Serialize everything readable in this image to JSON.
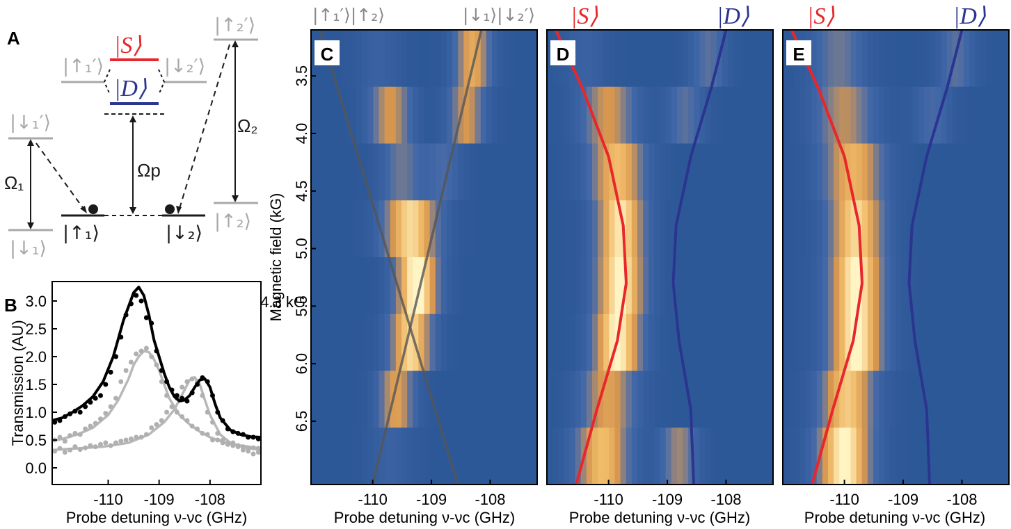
{
  "panels": {
    "A": {
      "label": "A",
      "levels": {
        "up1p": "|↑₁′⟩",
        "down2p_top": "|↓₂′⟩",
        "down1p": "|↓₁′⟩",
        "up2p": "|↑₂′⟩",
        "up1": "|↑₁⟩",
        "down2": "|↓₂⟩",
        "down1": "|↓₁⟩",
        "up2": "|↑₂⟩",
        "S": "|S⟩",
        "D": "|D⟩"
      },
      "couplings": {
        "omega1": "Ω₁",
        "omega2": "Ω₂",
        "omegap": "Ωp"
      },
      "colors": {
        "S": "#e8262b",
        "D": "#2b3590",
        "gray": "#a8a8a8",
        "black": "#1a1a1a"
      }
    }
  },
  "chart_data": [
    {
      "panel": "B",
      "type": "scatter",
      "annotation": "4.3 kG",
      "xlabel": "Probe detuning ν-νc (GHz)",
      "ylabel": "Transmission  (AU)",
      "xlim": [
        -111.1,
        -107.0
      ],
      "ylim": [
        -0.3,
        3.35
      ],
      "xticks": [
        -110,
        -109,
        -108
      ],
      "yticks": [
        0.0,
        0.5,
        1.0,
        1.5,
        2.0,
        2.5,
        3.0
      ],
      "series": [
        {
          "id": "total_fit",
          "color": "#000000",
          "x": [
            -111.1,
            -110.9,
            -110.7,
            -110.5,
            -110.3,
            -110.1,
            -109.9,
            -109.7,
            -109.5,
            -109.4,
            -109.3,
            -109.2,
            -109.1,
            -108.9,
            -108.8,
            -108.7,
            -108.6,
            -108.5,
            -108.4,
            -108.3,
            -108.2,
            -108.1,
            -108.0,
            -107.9,
            -107.8,
            -107.6,
            -107.4,
            -107.2,
            -107.0
          ],
          "y": [
            0.85,
            0.9,
            1.0,
            1.12,
            1.28,
            1.55,
            2.0,
            2.65,
            3.15,
            3.25,
            3.1,
            2.75,
            2.3,
            1.7,
            1.45,
            1.28,
            1.2,
            1.22,
            1.3,
            1.45,
            1.58,
            1.6,
            1.45,
            1.15,
            0.9,
            0.68,
            0.6,
            0.56,
            0.55
          ]
        },
        {
          "id": "component_1_fit",
          "color": "#b8b8b8",
          "x": [
            -111.1,
            -110.9,
            -110.6,
            -110.3,
            -110.0,
            -109.8,
            -109.6,
            -109.5,
            -109.4,
            -109.3,
            -109.2,
            -109.1,
            -109.0,
            -108.9,
            -108.8,
            -108.6,
            -108.4,
            -108.2,
            -108.0,
            -107.7,
            -107.4,
            -107.0
          ],
          "y": [
            0.48,
            0.52,
            0.6,
            0.72,
            0.95,
            1.22,
            1.6,
            1.85,
            2.0,
            2.1,
            2.08,
            1.95,
            1.75,
            1.5,
            1.25,
            0.95,
            0.78,
            0.65,
            0.55,
            0.45,
            0.4,
            0.35
          ]
        },
        {
          "id": "component_2_fit",
          "color": "#b8b8b8",
          "x": [
            -111.1,
            -110.6,
            -110.1,
            -109.6,
            -109.2,
            -108.9,
            -108.7,
            -108.5,
            -108.4,
            -108.3,
            -108.2,
            -108.1,
            -108.0,
            -107.8,
            -107.6,
            -107.3,
            -107.0
          ],
          "y": [
            0.32,
            0.35,
            0.38,
            0.45,
            0.6,
            0.82,
            1.05,
            1.4,
            1.58,
            1.63,
            1.5,
            1.22,
            0.95,
            0.6,
            0.45,
            0.36,
            0.32
          ]
        },
        {
          "id": "total_data",
          "color": "#000000",
          "x": [
            -111.05,
            -110.95,
            -110.85,
            -110.75,
            -110.65,
            -110.55,
            -110.45,
            -110.35,
            -110.25,
            -110.15,
            -110.05,
            -109.95,
            -109.85,
            -109.75,
            -109.65,
            -109.55,
            -109.45,
            -109.35,
            -109.25,
            -109.15,
            -109.05,
            -108.95,
            -108.85,
            -108.75,
            -108.65,
            -108.55,
            -108.45,
            -108.35,
            -108.25,
            -108.15,
            -108.05,
            -107.95,
            -107.85,
            -107.75,
            -107.65,
            -107.55,
            -107.45,
            -107.35,
            -107.25,
            -107.15,
            -107.05
          ],
          "y": [
            0.82,
            0.85,
            0.92,
            0.97,
            1.02,
            1.0,
            1.1,
            1.18,
            1.25,
            1.3,
            1.5,
            1.72,
            2.0,
            2.35,
            2.75,
            2.95,
            3.1,
            3.0,
            2.7,
            2.6,
            2.1,
            1.75,
            1.55,
            1.4,
            1.3,
            1.25,
            1.2,
            1.35,
            1.5,
            1.62,
            1.55,
            1.3,
            1.0,
            0.85,
            0.7,
            0.65,
            0.62,
            0.6,
            0.55,
            0.55,
            0.52
          ]
        },
        {
          "id": "component_1_data",
          "color": "#b0b0b0",
          "x": [
            -111.05,
            -110.95,
            -110.85,
            -110.75,
            -110.65,
            -110.55,
            -110.45,
            -110.35,
            -110.25,
            -110.15,
            -110.05,
            -109.95,
            -109.85,
            -109.75,
            -109.65,
            -109.55,
            -109.45,
            -109.35,
            -109.25,
            -109.15,
            -109.05,
            -108.95,
            -108.85,
            -108.75,
            -108.65,
            -108.55,
            -108.45,
            -108.35,
            -108.25,
            -108.15,
            -108.05,
            -107.95,
            -107.85,
            -107.75,
            -107.65,
            -107.55,
            -107.45,
            -107.35,
            -107.25,
            -107.15,
            -107.05
          ],
          "y": [
            0.5,
            0.55,
            0.48,
            0.58,
            0.62,
            0.6,
            0.7,
            0.75,
            0.8,
            0.88,
            0.98,
            1.1,
            1.25,
            1.55,
            1.75,
            1.9,
            2.05,
            2.1,
            2.15,
            2.0,
            1.85,
            1.55,
            1.3,
            1.1,
            1.0,
            0.92,
            0.85,
            0.75,
            0.7,
            0.62,
            0.6,
            0.5,
            0.5,
            0.45,
            0.42,
            0.45,
            0.4,
            0.38,
            0.35,
            0.36,
            0.35
          ]
        },
        {
          "id": "component_2_data",
          "color": "#b0b0b0",
          "x": [
            -111.05,
            -110.95,
            -110.85,
            -110.75,
            -110.65,
            -110.55,
            -110.45,
            -110.35,
            -110.25,
            -110.15,
            -110.05,
            -109.95,
            -109.85,
            -109.75,
            -109.65,
            -109.55,
            -109.45,
            -109.35,
            -109.25,
            -109.15,
            -109.05,
            -108.95,
            -108.85,
            -108.75,
            -108.65,
            -108.55,
            -108.45,
            -108.35,
            -108.25,
            -108.15,
            -108.05,
            -107.95,
            -107.85,
            -107.75,
            -107.65,
            -107.55,
            -107.45,
            -107.35,
            -107.25,
            -107.15,
            -107.05
          ],
          "y": [
            0.3,
            0.35,
            0.28,
            0.32,
            0.38,
            0.33,
            0.36,
            0.4,
            0.38,
            0.42,
            0.45,
            0.4,
            0.45,
            0.48,
            0.5,
            0.52,
            0.55,
            0.55,
            0.6,
            0.72,
            0.78,
            0.85,
            1.0,
            1.1,
            1.25,
            1.45,
            1.55,
            1.6,
            1.55,
            1.3,
            1.0,
            0.82,
            0.62,
            0.5,
            0.45,
            0.4,
            0.38,
            0.32,
            0.3,
            0.25,
            0.28
          ]
        }
      ]
    },
    {
      "panel": "C",
      "type": "heatmap",
      "xlabel": "Probe detuning ν-νc (GHz)",
      "ylabel": "Magnetic field (kG)",
      "xlim": [
        -111.05,
        -107.2
      ],
      "ylim": [
        7.05,
        3.1
      ],
      "xticks": [
        -110,
        -109,
        -108
      ],
      "yticks": [
        3.5,
        4.0,
        4.5,
        5.0,
        5.5,
        6.0,
        6.5
      ],
      "top_labels": [
        "|↑₁′⟩|↑₂⟩",
        "|↓₁⟩|↓₂′⟩"
      ],
      "rows": [
        {
          "field": 3.3,
          "peaks": [
            {
              "x": -109.9,
              "amp": 0.15,
              "w": 0.35
            },
            {
              "x": -108.3,
              "amp": 0.65,
              "w": 0.3
            }
          ]
        },
        {
          "field": 3.8,
          "peaks": [
            {
              "x": -109.7,
              "amp": 0.55,
              "w": 0.35
            },
            {
              "x": -108.4,
              "amp": 0.55,
              "w": 0.3
            }
          ]
        },
        {
          "field": 4.3,
          "peaks": [
            {
              "x": -109.5,
              "amp": 0.35,
              "w": 0.35
            },
            {
              "x": -108.8,
              "amp": 0.25,
              "w": 0.3
            }
          ]
        },
        {
          "field": 4.8,
          "peaks": [
            {
              "x": -109.35,
              "amp": 0.85,
              "w": 0.45
            }
          ]
        },
        {
          "field": 5.3,
          "peaks": [
            {
              "x": -109.25,
              "amp": 1.0,
              "w": 0.35
            }
          ]
        },
        {
          "field": 5.8,
          "peaks": [
            {
              "x": -109.35,
              "amp": 0.85,
              "w": 0.35
            }
          ]
        },
        {
          "field": 6.3,
          "peaks": [
            {
              "x": -109.6,
              "amp": 0.6,
              "w": 0.3
            }
          ]
        },
        {
          "field": 6.8,
          "peaks": [
            {
              "x": -109.7,
              "amp": 0.15,
              "w": 0.35
            }
          ]
        }
      ],
      "lines": [
        {
          "color": "#555555",
          "x": [
            -110.9,
            -108.55
          ],
          "y": [
            3.1,
            7.05
          ]
        },
        {
          "color": "#555555",
          "x": [
            -108.15,
            -110.0
          ],
          "y": [
            3.1,
            7.05
          ]
        }
      ]
    },
    {
      "panel": "D",
      "type": "heatmap",
      "xlabel": "Probe detuning ν-νc (GHz)",
      "xlim": [
        -111.05,
        -107.2
      ],
      "ylim": [
        7.05,
        3.1
      ],
      "xticks": [
        -110,
        -109,
        -108
      ],
      "top_labels": [
        "|S⟩",
        "|D⟩"
      ],
      "rows": [
        {
          "field": 3.3,
          "peaks": [
            {
              "x": -110.4,
              "amp": 0.15,
              "w": 0.35
            },
            {
              "x": -108.3,
              "amp": 0.3,
              "w": 0.3
            }
          ]
        },
        {
          "field": 3.8,
          "peaks": [
            {
              "x": -110.0,
              "amp": 0.55,
              "w": 0.45
            },
            {
              "x": -108.7,
              "amp": 0.3,
              "w": 0.3
            }
          ]
        },
        {
          "field": 4.3,
          "peaks": [
            {
              "x": -109.85,
              "amp": 0.75,
              "w": 0.45
            }
          ]
        },
        {
          "field": 4.8,
          "peaks": [
            {
              "x": -109.8,
              "amp": 0.9,
              "w": 0.4
            }
          ]
        },
        {
          "field": 5.3,
          "peaks": [
            {
              "x": -109.8,
              "amp": 0.95,
              "w": 0.4
            }
          ]
        },
        {
          "field": 5.8,
          "peaks": [
            {
              "x": -109.85,
              "amp": 0.95,
              "w": 0.4
            }
          ]
        },
        {
          "field": 6.3,
          "peaks": [
            {
              "x": -110.0,
              "amp": 0.6,
              "w": 0.45
            }
          ]
        },
        {
          "field": 6.8,
          "peaks": [
            {
              "x": -110.1,
              "amp": 0.75,
              "w": 0.45
            },
            {
              "x": -108.8,
              "amp": 0.45,
              "w": 0.3
            }
          ]
        }
      ],
      "curves": [
        {
          "name": "S",
          "color": "#e8262b",
          "x": [
            -110.9,
            -110.45,
            -110.0,
            -109.75,
            -109.7,
            -109.85,
            -110.2,
            -110.55
          ],
          "y": [
            3.1,
            3.6,
            4.2,
            4.8,
            5.3,
            5.8,
            6.4,
            7.05
          ]
        },
        {
          "name": "D",
          "color": "#2b3590",
          "x": [
            -108.0,
            -108.25,
            -108.6,
            -108.85,
            -108.9,
            -108.8,
            -108.6,
            -108.55
          ],
          "y": [
            3.1,
            3.6,
            4.2,
            4.8,
            5.3,
            5.8,
            6.4,
            7.05
          ]
        }
      ]
    },
    {
      "panel": "E",
      "type": "heatmap",
      "xlabel": "Probe detuning ν-νc (GHz)",
      "xlim": [
        -111.05,
        -107.2
      ],
      "ylim": [
        7.05,
        3.1
      ],
      "xticks": [
        -110,
        -109,
        -108
      ],
      "top_labels": [
        "|S⟩",
        "|D⟩"
      ],
      "rows": [
        {
          "field": 3.3,
          "peaks": [
            {
              "x": -110.1,
              "amp": 0.35,
              "w": 0.45
            },
            {
              "x": -108.1,
              "amp": 0.3,
              "w": 0.3
            }
          ]
        },
        {
          "field": 3.8,
          "peaks": [
            {
              "x": -110.0,
              "amp": 0.5,
              "w": 0.5
            },
            {
              "x": -108.5,
              "amp": 0.25,
              "w": 0.3
            }
          ]
        },
        {
          "field": 4.3,
          "peaks": [
            {
              "x": -109.85,
              "amp": 0.7,
              "w": 0.5
            }
          ]
        },
        {
          "field": 4.8,
          "peaks": [
            {
              "x": -109.8,
              "amp": 0.85,
              "w": 0.45
            }
          ]
        },
        {
          "field": 5.3,
          "peaks": [
            {
              "x": -109.8,
              "amp": 0.95,
              "w": 0.45
            }
          ]
        },
        {
          "field": 5.8,
          "peaks": [
            {
              "x": -109.8,
              "amp": 0.95,
              "w": 0.45
            }
          ]
        },
        {
          "field": 6.3,
          "peaks": [
            {
              "x": -109.95,
              "amp": 0.8,
              "w": 0.45
            }
          ]
        },
        {
          "field": 6.8,
          "peaks": [
            {
              "x": -110.0,
              "amp": 0.95,
              "w": 0.45
            }
          ]
        }
      ],
      "curves": [
        {
          "name": "S",
          "color": "#e8262b",
          "x": [
            -110.9,
            -110.45,
            -110.0,
            -109.75,
            -109.7,
            -109.85,
            -110.2,
            -110.55
          ],
          "y": [
            3.1,
            3.6,
            4.2,
            4.8,
            5.3,
            5.8,
            6.4,
            7.05
          ]
        },
        {
          "name": "D",
          "color": "#2b3590",
          "x": [
            -108.0,
            -108.25,
            -108.6,
            -108.85,
            -108.9,
            -108.8,
            -108.6,
            -108.55
          ],
          "y": [
            3.1,
            3.6,
            4.2,
            4.8,
            5.3,
            5.8,
            6.4,
            7.05
          ]
        }
      ]
    }
  ]
}
